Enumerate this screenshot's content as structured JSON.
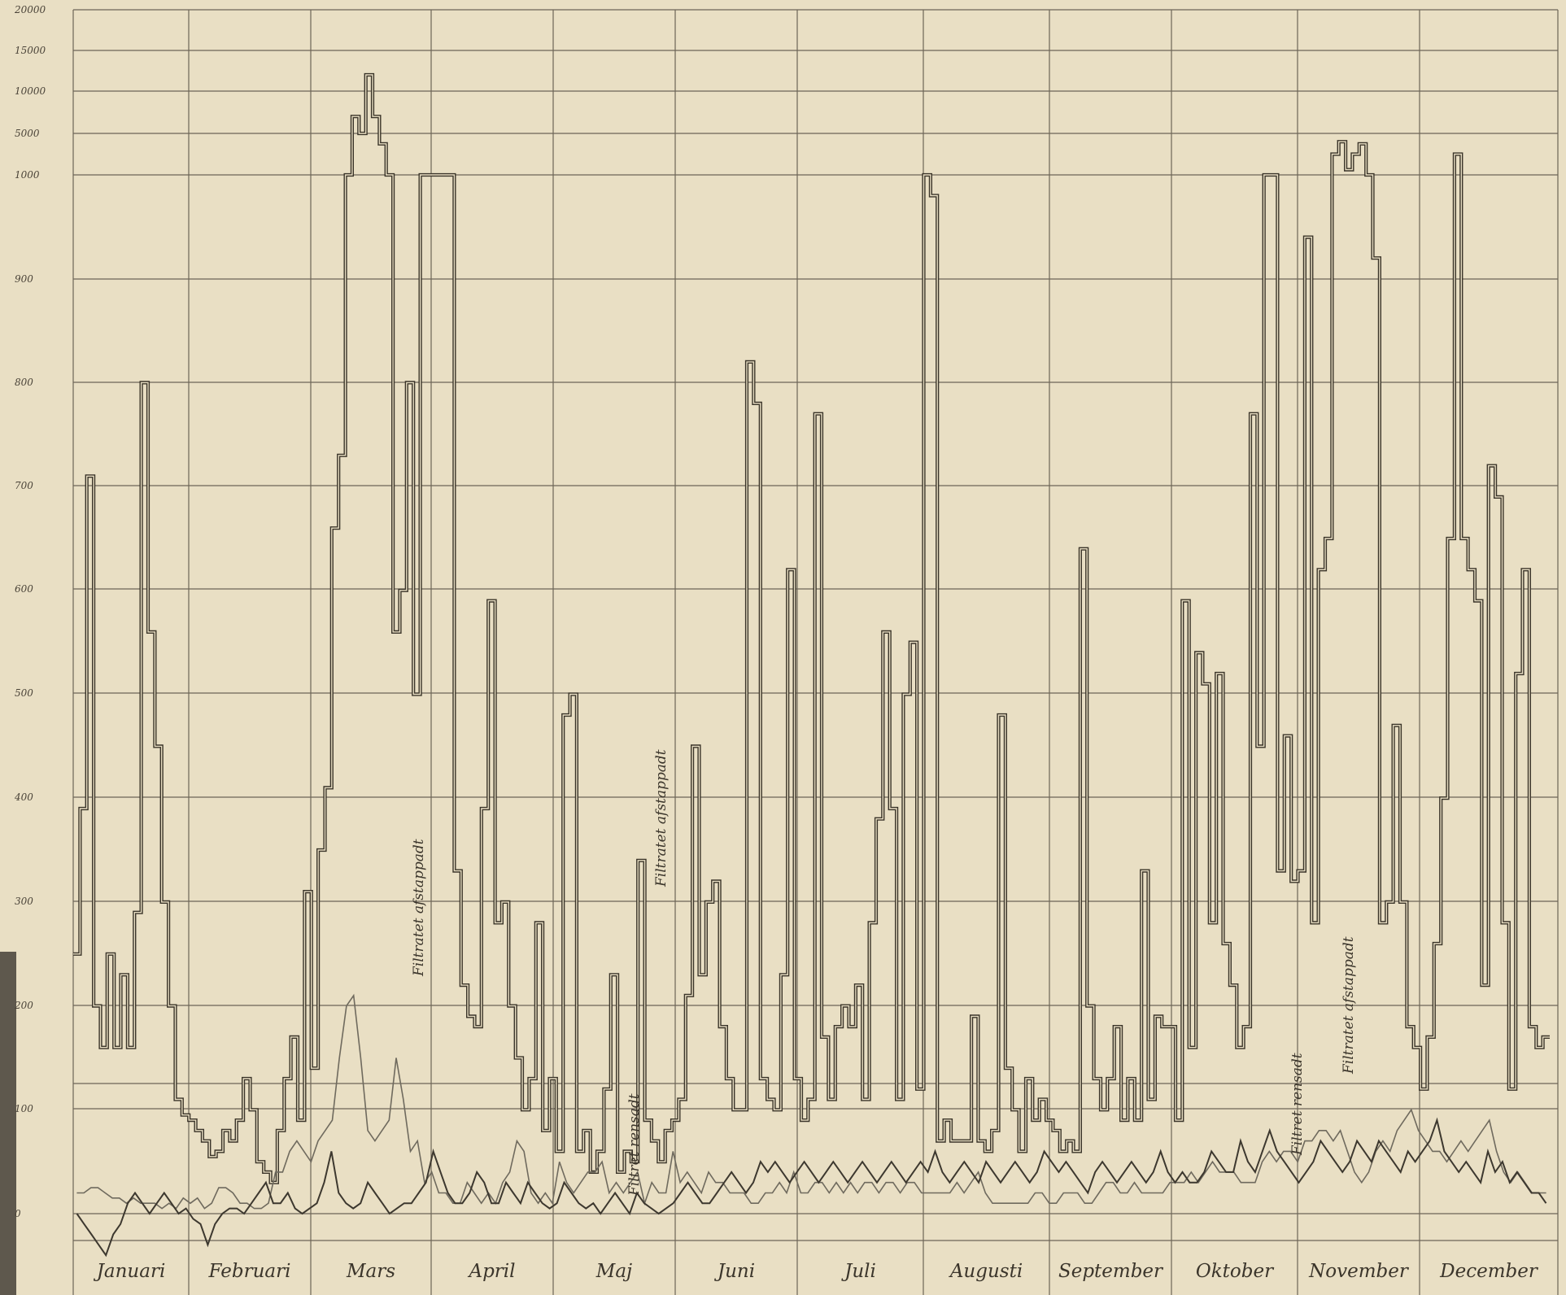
{
  "chart_data": {
    "type": "line",
    "y_ticks": [
      "20000",
      "15000",
      "10000",
      "5000",
      "1000",
      "900",
      "800",
      "700",
      "600",
      "500",
      "400",
      "300",
      "200",
      "100",
      "0"
    ],
    "months": [
      "Januari",
      "Februari",
      "Mars",
      "April",
      "Maj",
      "Juni",
      "Juli",
      "Augusti",
      "September",
      "Oktober",
      "November",
      "December"
    ],
    "series": [
      {
        "values": [
          250,
          390,
          710,
          200,
          160,
          250,
          160,
          230,
          160,
          290,
          800,
          560,
          450,
          300,
          200,
          110,
          95,
          90,
          80,
          70,
          55,
          60,
          80,
          70,
          90,
          130,
          100,
          50,
          40,
          30,
          80,
          130,
          170,
          90,
          310,
          140,
          350,
          410,
          660,
          730,
          1000,
          7000,
          5000,
          12000,
          7000,
          4000,
          1000,
          560,
          600,
          800,
          500,
          1000,
          1000,
          1000,
          1000,
          1000,
          330,
          220,
          190,
          180,
          390,
          590,
          280,
          300,
          200,
          150,
          100,
          130,
          280,
          80,
          130,
          60,
          480,
          500,
          60,
          80,
          40,
          60,
          120,
          230,
          40,
          60,
          50,
          340,
          90,
          70,
          50,
          80,
          90,
          110,
          210,
          450,
          230,
          300,
          320,
          180,
          130,
          100,
          100,
          820,
          780,
          130,
          110,
          100,
          230,
          620,
          130,
          90,
          110,
          770,
          170,
          110,
          180,
          200,
          180,
          220,
          110,
          280,
          380,
          560,
          390,
          110,
          500,
          550,
          120,
          1000,
          980,
          70,
          90,
          70,
          70,
          70,
          190,
          70,
          60,
          80,
          480,
          140,
          100,
          60,
          130,
          90,
          110,
          90,
          80,
          60,
          70,
          60,
          640,
          200,
          130,
          100,
          130,
          180,
          90,
          130,
          90,
          330,
          110,
          190,
          180,
          180,
          90,
          590,
          160,
          540,
          510,
          280,
          520,
          260,
          220,
          160,
          180,
          770,
          450,
          1000,
          1000,
          330,
          460,
          320,
          330,
          940,
          280,
          620,
          650,
          3000,
          4200,
          1500,
          3000,
          4000,
          1000,
          920,
          280,
          300,
          470,
          300,
          180,
          160,
          120,
          170,
          260,
          400,
          650,
          3000,
          650,
          620,
          590,
          220,
          720,
          690,
          280,
          120,
          520,
          620,
          180,
          160,
          170
        ],
        "scale": "broken: linear 0-1000, compressed 1000-20000"
      },
      {
        "values": [
          20,
          20,
          25,
          25,
          20,
          15,
          15,
          10,
          15,
          10,
          10,
          10,
          5,
          10,
          5,
          15,
          10,
          15,
          5,
          10,
          25,
          25,
          20,
          10,
          10,
          5,
          5,
          10,
          40,
          40,
          60,
          70,
          60,
          50,
          70,
          80,
          90,
          150,
          200,
          210,
          150,
          80,
          70,
          80,
          90,
          150,
          110,
          60,
          70,
          30,
          40,
          20,
          20,
          10,
          10,
          30,
          20,
          10,
          20,
          10,
          30,
          40,
          70,
          60,
          20,
          10,
          20,
          10,
          50,
          30,
          20,
          30,
          40,
          40,
          50,
          20,
          30,
          20,
          30,
          40,
          10,
          30,
          20,
          20,
          60,
          30,
          40,
          30,
          20,
          40,
          30,
          30,
          20,
          20,
          20,
          10,
          10,
          20,
          20,
          30,
          20,
          40,
          20,
          20,
          30,
          30,
          20,
          30,
          20,
          30,
          20,
          30,
          30,
          20,
          30,
          30,
          20,
          30,
          30,
          20,
          20,
          20,
          20,
          20,
          30,
          20,
          30,
          40,
          20,
          10,
          10,
          10,
          10,
          10,
          10,
          20,
          20,
          10,
          10,
          20,
          20,
          20,
          10,
          10,
          20,
          30,
          30,
          20,
          20,
          30,
          20,
          20,
          20,
          20,
          30,
          30,
          30,
          40,
          30,
          40,
          50,
          40,
          40,
          40,
          30,
          30,
          30,
          50,
          60,
          50,
          60,
          60,
          50,
          70,
          70,
          80,
          80,
          70,
          80,
          60,
          40,
          30,
          40,
          60,
          70,
          60,
          80,
          90,
          100,
          80,
          70,
          60,
          60,
          50,
          60,
          70,
          60,
          70,
          80,
          90,
          60,
          40,
          30,
          40,
          30,
          20,
          20,
          20
        ],
        "color": "#6f6a5e"
      },
      {
        "values": [
          0,
          -10,
          -20,
          -30,
          -40,
          -20,
          -10,
          10,
          20,
          10,
          0,
          10,
          20,
          10,
          0,
          5,
          -5,
          -10,
          -30,
          -10,
          0,
          5,
          5,
          0,
          10,
          20,
          30,
          10,
          10,
          20,
          5,
          0,
          5,
          10,
          30,
          60,
          20,
          10,
          5,
          10,
          30,
          20,
          10,
          0,
          5,
          10,
          10,
          20,
          30,
          60,
          40,
          20,
          10,
          10,
          20,
          40,
          30,
          10,
          10,
          30,
          20,
          10,
          30,
          20,
          10,
          5,
          10,
          30,
          20,
          10,
          5,
          10,
          0,
          10,
          20,
          10,
          0,
          20,
          10,
          5,
          0,
          5,
          10,
          20,
          30,
          20,
          10,
          10,
          20,
          30,
          40,
          30,
          20,
          30,
          50,
          40,
          50,
          40,
          30,
          40,
          50,
          40,
          30,
          40,
          50,
          40,
          30,
          40,
          50,
          40,
          30,
          40,
          50,
          40,
          30,
          40,
          50,
          40,
          60,
          40,
          30,
          40,
          50,
          40,
          30,
          50,
          40,
          30,
          40,
          50,
          40,
          30,
          40,
          60,
          50,
          40,
          50,
          40,
          30,
          20,
          40,
          50,
          40,
          30,
          40,
          50,
          40,
          30,
          40,
          60,
          40,
          30,
          40,
          30,
          30,
          40,
          60,
          50,
          40,
          40,
          70,
          50,
          40,
          60,
          80,
          60,
          50,
          40,
          30,
          40,
          50,
          70,
          60,
          50,
          40,
          50,
          70,
          60,
          50,
          70,
          60,
          50,
          40,
          60,
          50,
          60,
          70,
          90,
          60,
          50,
          40,
          50,
          40,
          30,
          60,
          40,
          50,
          30,
          40,
          30,
          20,
          20,
          10
        ],
        "color": "#3d382f"
      }
    ]
  },
  "annotations": [
    "Filtratet afstappadt",
    "Filtratet afstappadt",
    "Filtret rensadt",
    "Filtret rensadt",
    "Filtratet afstappadt"
  ]
}
